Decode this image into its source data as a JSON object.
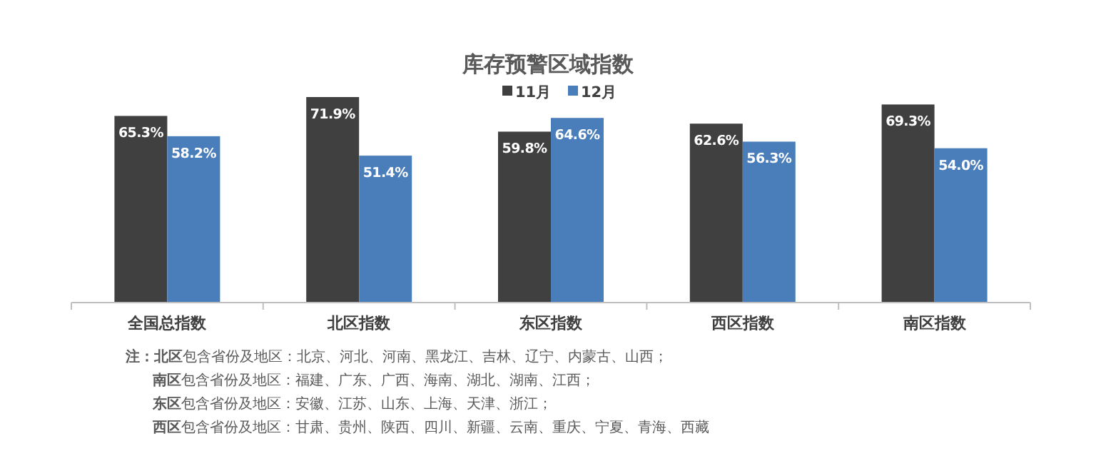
{
  "chart_data": {
    "type": "bar",
    "title": "库存预警区域指数",
    "categories": [
      "全国总指数",
      "北区指数",
      "东区指数",
      "西区指数",
      "南区指数"
    ],
    "series": [
      {
        "name": "11月",
        "color": "#404040",
        "values": [
          65.3,
          71.9,
          59.8,
          62.6,
          69.3
        ],
        "value_labels": [
          "65.3%",
          "71.9%",
          "59.8%",
          "62.6%",
          "69.3%"
        ]
      },
      {
        "name": "12月",
        "color": "#4a7ebb",
        "values": [
          58.2,
          51.4,
          64.6,
          56.3,
          54.0
        ],
        "value_labels": [
          "58.2%",
          "51.4%",
          "64.6%",
          "56.3%",
          "54.0%"
        ]
      }
    ],
    "legend": "top",
    "annotations": [
      "**注：北区**包含省份及地区：北京、河北、河南、黑龙江、吉林、辽宁、内蒙古、山西；",
      "**南区**包含省份及地区：福建、广东、广西、海南、湖北、湖南、江西；",
      "**东区**包含省份及地区：安徽、江苏、山东、上海、天津、浙江；",
      "**西区**包含省份及地区：甘肃、贵州、陕西、四川、新疆、云南、重庆、宁夏、青海、西藏"
    ]
  }
}
